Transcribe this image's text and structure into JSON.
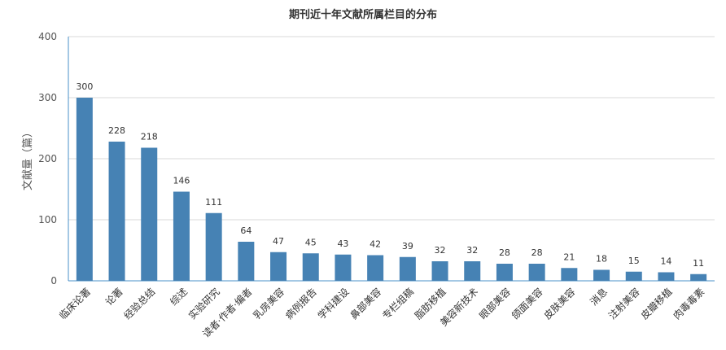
{
  "chart_data": {
    "type": "bar",
    "title": "期刊近十年文献所属栏目的分布",
    "xlabel": "",
    "ylabel": "文献量（篇）",
    "ylim": [
      0,
      400
    ],
    "yticks": [
      0,
      100,
      200,
      300,
      400
    ],
    "grid": true,
    "legend": "none",
    "bar_color": "#4682b4",
    "categories": [
      "临床论著",
      "论著",
      "经验总结",
      "综述",
      "实验研究",
      "读者·作者·编者",
      "乳房美容",
      "病例报告",
      "学科建设",
      "鼻部美容",
      "专栏组稿",
      "脂肪移植",
      "美容新技术",
      "眼部美容",
      "颌面美容",
      "皮肤美容",
      "消息",
      "注射美容",
      "皮瓣移植",
      "肉毒毒素"
    ],
    "values": [
      300,
      228,
      218,
      146,
      111,
      64,
      47,
      45,
      43,
      42,
      39,
      32,
      32,
      28,
      28,
      21,
      18,
      15,
      14,
      11
    ]
  }
}
